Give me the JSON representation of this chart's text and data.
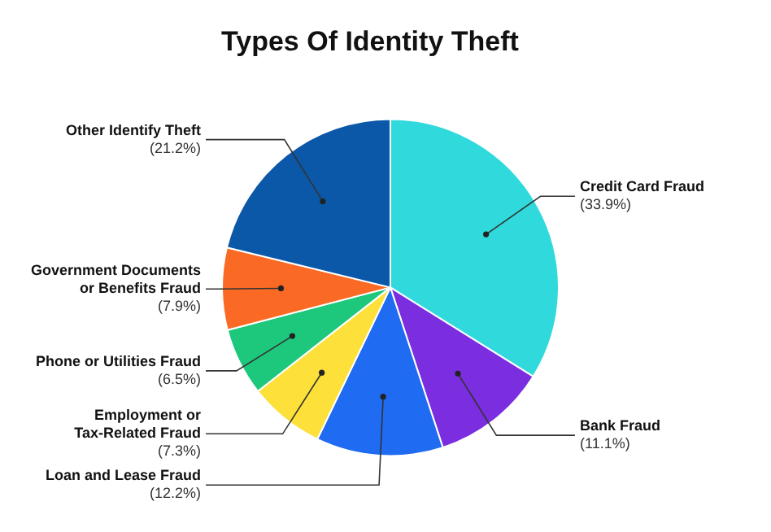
{
  "chart_data": {
    "type": "pie",
    "title": "Types Of Identity Theft",
    "categories": [
      "Credit Card Fraud",
      "Bank Fraud",
      "Loan and Lease Fraud",
      "Employment or Tax-Related Fraud",
      "Phone or Utilities Fraud",
      "Government Documents or Benefits Fraud",
      "Other Identify Theft"
    ],
    "values": [
      33.9,
      11.1,
      12.2,
      7.3,
      6.5,
      7.9,
      21.2
    ],
    "colors": [
      "#2fd9dc",
      "#7a2ee0",
      "#1f6bf2",
      "#fde03a",
      "#1dc87c",
      "#fb6a25",
      "#0b58a8"
    ],
    "value_labels": [
      "(33.9%)",
      "(11.1%)",
      "(12.2%)",
      "(7.3%)",
      "(6.5%)",
      "(7.9%)",
      "(21.2%)"
    ],
    "legend": false
  }
}
